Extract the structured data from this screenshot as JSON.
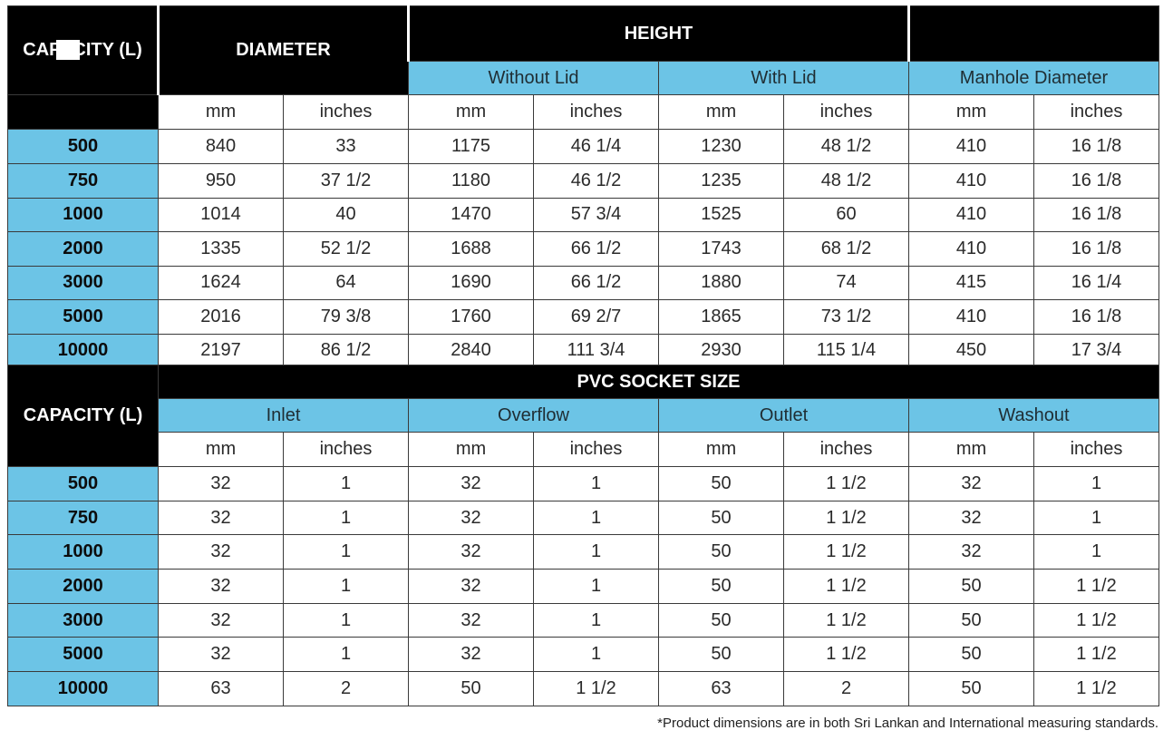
{
  "dimensions": {
    "capacity_header": "CAPACITY (L)",
    "diameter_header": "DIAMETER",
    "height_header": "HEIGHT",
    "height_sub": [
      "Without Lid",
      "With Lid"
    ],
    "manhole_header": "Manhole Diameter",
    "units": [
      "mm",
      "inches",
      "mm",
      "inches",
      "mm",
      "inches",
      "mm",
      "inches"
    ],
    "rows": [
      {
        "capacity": "500",
        "cells": [
          "840",
          "33",
          "1175",
          "46 1/4",
          "1230",
          "48 1/2",
          "410",
          "16 1/8"
        ]
      },
      {
        "capacity": "750",
        "cells": [
          "950",
          "37 1/2",
          "1180",
          "46 1/2",
          "1235",
          "48 1/2",
          "410",
          "16 1/8"
        ]
      },
      {
        "capacity": "1000",
        "cells": [
          "1014",
          "40",
          "1470",
          "57 3/4",
          "1525",
          "60",
          "410",
          "16 1/8"
        ]
      },
      {
        "capacity": "2000",
        "cells": [
          "1335",
          "52 1/2",
          "1688",
          "66 1/2",
          "1743",
          "68 1/2",
          "410",
          "16 1/8"
        ]
      },
      {
        "capacity": "3000",
        "cells": [
          "1624",
          "64",
          "1690",
          "66 1/2",
          "1880",
          "74",
          "415",
          "16 1/4"
        ]
      },
      {
        "capacity": "5000",
        "cells": [
          "2016",
          "79 3/8",
          "1760",
          "69 2/7",
          "1865",
          "73 1/2",
          "410",
          "16 1/8"
        ]
      },
      {
        "capacity": "10000",
        "cells": [
          "2197",
          "86 1/2",
          "2840",
          "111 3/4",
          "2930",
          "115 1/4",
          "450",
          "17 3/4"
        ]
      }
    ]
  },
  "sockets": {
    "section_header": "PVC SOCKET SIZE",
    "capacity_header": "CAPACITY (L)",
    "groups": [
      "Inlet",
      "Overflow",
      "Outlet",
      "Washout"
    ],
    "units": [
      "mm",
      "inches",
      "mm",
      "inches",
      "mm",
      "inches",
      "mm",
      "inches"
    ],
    "rows": [
      {
        "capacity": "500",
        "cells": [
          "32",
          "1",
          "32",
          "1",
          "50",
          "1 1/2",
          "32",
          "1"
        ]
      },
      {
        "capacity": "750",
        "cells": [
          "32",
          "1",
          "32",
          "1",
          "50",
          "1 1/2",
          "32",
          "1"
        ]
      },
      {
        "capacity": "1000",
        "cells": [
          "32",
          "1",
          "32",
          "1",
          "50",
          "1 1/2",
          "32",
          "1"
        ]
      },
      {
        "capacity": "2000",
        "cells": [
          "32",
          "1",
          "32",
          "1",
          "50",
          "1 1/2",
          "50",
          "1 1/2"
        ]
      },
      {
        "capacity": "3000",
        "cells": [
          "32",
          "1",
          "32",
          "1",
          "50",
          "1 1/2",
          "50",
          "1 1/2"
        ]
      },
      {
        "capacity": "5000",
        "cells": [
          "32",
          "1",
          "32",
          "1",
          "50",
          "1 1/2",
          "50",
          "1 1/2"
        ]
      },
      {
        "capacity": "10000",
        "cells": [
          "63",
          "2",
          "50",
          "1 1/2",
          "63",
          "2",
          "50",
          "1 1/2"
        ]
      }
    ]
  },
  "footnote": "*Product dimensions are in both Sri Lankan and International measuring standards."
}
